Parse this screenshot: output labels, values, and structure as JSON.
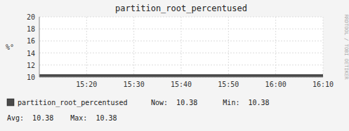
{
  "chart_data": {
    "type": "area",
    "title": "partition_root_percentused",
    "y_label": "%°",
    "x": [
      0,
      60
    ],
    "series": [
      {
        "name": "partition_root_percentused",
        "color": "#4a4a4a",
        "values": [
          10.38,
          10.38
        ]
      }
    ],
    "xlim": [
      0,
      60
    ],
    "xticks": [
      {
        "value": 10,
        "label": "15:20"
      },
      {
        "value": 20,
        "label": "15:30"
      },
      {
        "value": 30,
        "label": "15:40"
      },
      {
        "value": 40,
        "label": "15:50"
      },
      {
        "value": 50,
        "label": "16:00"
      },
      {
        "value": 60,
        "label": "16:10"
      }
    ],
    "ylim": [
      10,
      20
    ],
    "yticks": [
      10,
      12,
      14,
      16,
      18,
      20
    ],
    "grid": true,
    "legend": "bottom-left",
    "annotations": [
      "Now:  10.38      Min:  10.38",
      "Avg:  10.38    Max:  10.38",
      "RRDTOOL / TOBI OETIKER"
    ]
  }
}
